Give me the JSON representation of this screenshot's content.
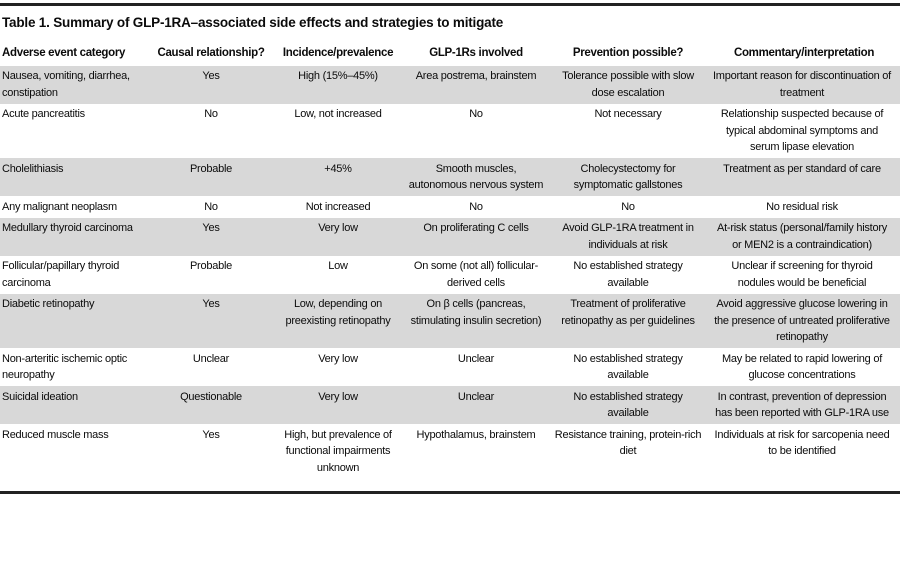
{
  "table": {
    "title": "Table 1. Summary of GLP-1RA–associated side effects and strategies to mitigate",
    "columns": [
      "Adverse event category",
      "Causal relationship?",
      "Incidence/prevalence",
      "GLP-1Rs involved",
      "Prevention possible?",
      "Commentary/interpretation"
    ],
    "rows": [
      [
        "Nausea, vomiting, diarrhea, constipation",
        "Yes",
        "High (15%–45%)",
        "Area postrema, brainstem",
        "Tolerance possible with slow dose escalation",
        "Important reason for discontinuation of treatment"
      ],
      [
        "Acute pancreatitis",
        "No",
        "Low, not increased",
        "No",
        "Not necessary",
        "Relationship suspected because of typical abdominal symptoms and serum lipase elevation"
      ],
      [
        "Cholelithiasis",
        "Probable",
        "+45%",
        "Smooth muscles, autonomous nervous system",
        "Cholecystectomy for symptomatic gallstones",
        "Treatment as per standard of care"
      ],
      [
        "Any malignant neoplasm",
        "No",
        "Not increased",
        "No",
        "No",
        "No residual risk"
      ],
      [
        "Medullary thyroid carcinoma",
        "Yes",
        "Very low",
        "On proliferating C cells",
        "Avoid GLP-1RA treatment in individuals at risk",
        "At-risk status (personal/family history or MEN2 is a contraindication)"
      ],
      [
        "Follicular/papillary thyroid carcinoma",
        "Probable",
        "Low",
        "On some (not all) follicular-derived cells",
        "No established strategy available",
        "Unclear if screening for thyroid nodules would be beneficial"
      ],
      [
        "Diabetic retinopathy",
        "Yes",
        "Low, depending on preexisting retinopathy",
        "On β cells (pancreas, stimulating insulin secretion)",
        "Treatment of proliferative retinopathy as per guidelines",
        "Avoid aggressive glucose lowering in the presence of untreated proliferative retinopathy"
      ],
      [
        "Non-arteritic ischemic optic neuropathy",
        "Unclear",
        "Very low",
        "Unclear",
        "No established strategy available",
        "May be related to rapid lowering of glucose concentrations"
      ],
      [
        "Suicidal ideation",
        "Questionable",
        "Very low",
        "Unclear",
        "No established strategy available",
        "In contrast, prevention of depression has been reported with GLP-1RA use"
      ],
      [
        "Reduced muscle mass",
        "Yes",
        "High, but prevalence of functional impairments unknown",
        "Hypothalamus, brainstem",
        "Resistance training, protein-rich diet",
        "Individuals at risk for sarcopenia need to be identified"
      ]
    ],
    "colors": {
      "row_shade": "#d8d8d8",
      "rule": "#222222",
      "text": "#0b0b0b"
    }
  }
}
